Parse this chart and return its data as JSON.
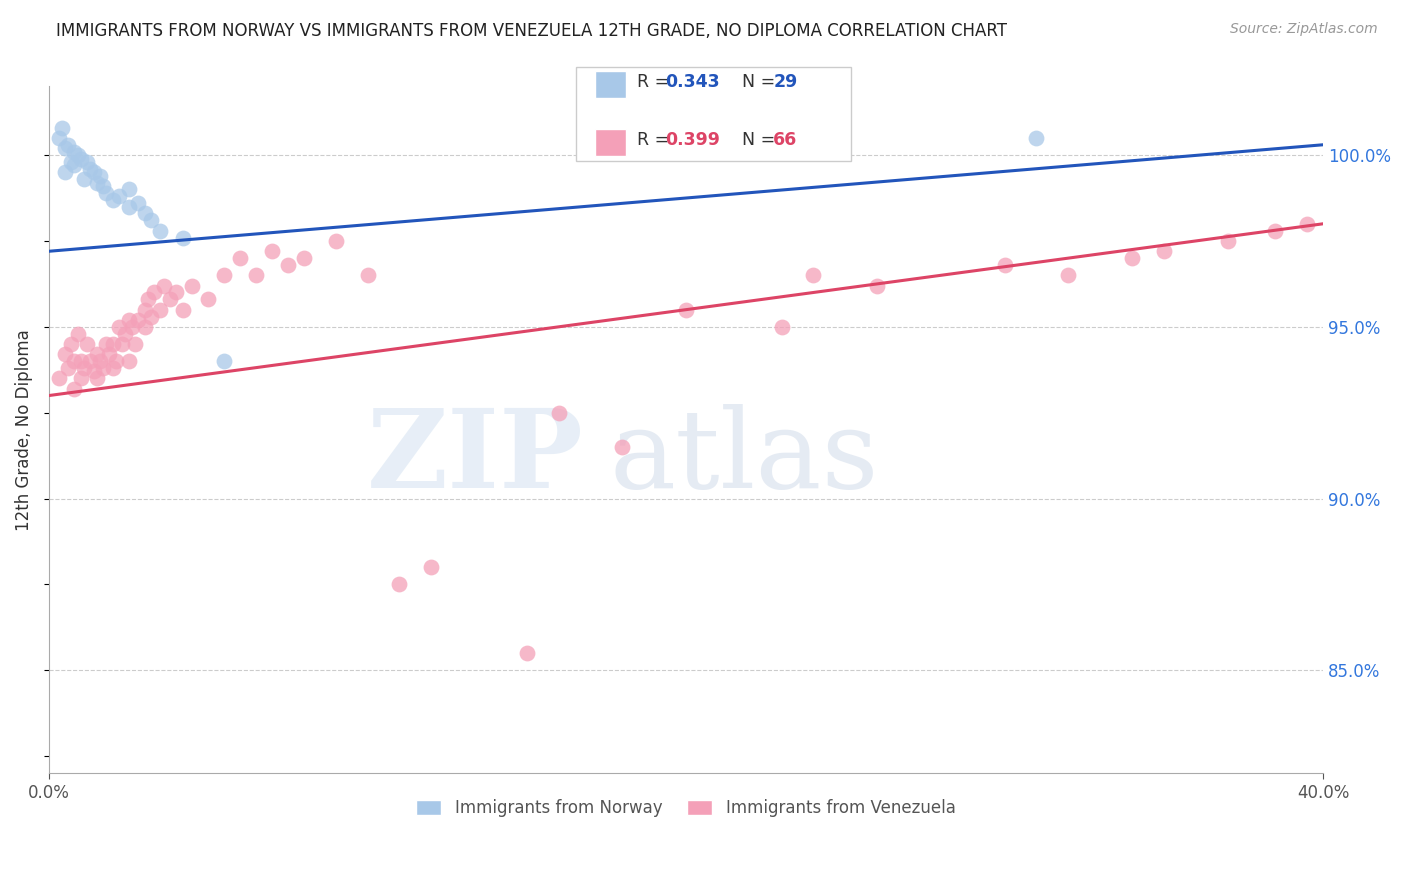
{
  "title": "IMMIGRANTS FROM NORWAY VS IMMIGRANTS FROM VENEZUELA 12TH GRADE, NO DIPLOMA CORRELATION CHART",
  "source": "Source: ZipAtlas.com",
  "ylabel": "12th Grade, No Diploma",
  "norway_R": 0.343,
  "norway_N": 29,
  "venezuela_R": 0.399,
  "venezuela_N": 66,
  "norway_color": "#a8c8e8",
  "venezuela_color": "#f4a0b8",
  "norway_line_color": "#2255bb",
  "venezuela_line_color": "#dd4466",
  "background_color": "#ffffff",
  "xlim": [
    0,
    40
  ],
  "ylim": [
    82,
    102
  ],
  "ytick_vals": [
    100,
    95,
    90,
    85
  ],
  "norway_line_x0": 0,
  "norway_line_y0": 97.2,
  "norway_line_x1": 40,
  "norway_line_y1": 100.3,
  "venezuela_line_x0": 0,
  "venezuela_line_y0": 93.0,
  "venezuela_line_x1": 40,
  "venezuela_line_y1": 98.0,
  "norway_x": [
    0.3,
    0.4,
    0.5,
    0.5,
    0.6,
    0.7,
    0.8,
    0.8,
    0.9,
    1.0,
    1.1,
    1.2,
    1.3,
    1.4,
    1.5,
    1.6,
    1.7,
    1.8,
    2.0,
    2.2,
    2.5,
    2.5,
    2.8,
    3.0,
    3.2,
    3.5,
    4.2,
    5.5,
    31.0
  ],
  "norway_y": [
    100.5,
    100.8,
    100.2,
    99.5,
    100.3,
    99.8,
    100.1,
    99.7,
    100.0,
    99.9,
    99.3,
    99.8,
    99.6,
    99.5,
    99.2,
    99.4,
    99.1,
    98.9,
    98.7,
    98.8,
    98.5,
    99.0,
    98.6,
    98.3,
    98.1,
    97.8,
    97.6,
    94.0,
    100.5
  ],
  "venezuela_x": [
    0.3,
    0.5,
    0.6,
    0.7,
    0.8,
    0.8,
    0.9,
    1.0,
    1.0,
    1.1,
    1.2,
    1.3,
    1.4,
    1.5,
    1.5,
    1.6,
    1.7,
    1.8,
    1.9,
    2.0,
    2.0,
    2.1,
    2.2,
    2.3,
    2.4,
    2.5,
    2.5,
    2.6,
    2.7,
    2.8,
    3.0,
    3.0,
    3.1,
    3.2,
    3.3,
    3.5,
    3.6,
    3.8,
    4.0,
    4.2,
    4.5,
    5.0,
    5.5,
    6.0,
    6.5,
    7.0,
    7.5,
    8.0,
    9.0,
    10.0,
    11.0,
    12.0,
    15.0,
    16.0,
    18.0,
    20.0,
    23.0,
    24.0,
    26.0,
    30.0,
    32.0,
    34.0,
    35.0,
    37.0,
    38.5,
    39.5
  ],
  "venezuela_y": [
    93.5,
    94.2,
    93.8,
    94.5,
    94.0,
    93.2,
    94.8,
    93.5,
    94.0,
    93.8,
    94.5,
    94.0,
    93.7,
    94.2,
    93.5,
    94.0,
    93.8,
    94.5,
    94.2,
    93.8,
    94.5,
    94.0,
    95.0,
    94.5,
    94.8,
    95.2,
    94.0,
    95.0,
    94.5,
    95.2,
    95.5,
    95.0,
    95.8,
    95.3,
    96.0,
    95.5,
    96.2,
    95.8,
    96.0,
    95.5,
    96.2,
    95.8,
    96.5,
    97.0,
    96.5,
    97.2,
    96.8,
    97.0,
    97.5,
    96.5,
    87.5,
    88.0,
    85.5,
    92.5,
    91.5,
    95.5,
    95.0,
    96.5,
    96.2,
    96.8,
    96.5,
    97.0,
    97.2,
    97.5,
    97.8,
    98.0
  ]
}
